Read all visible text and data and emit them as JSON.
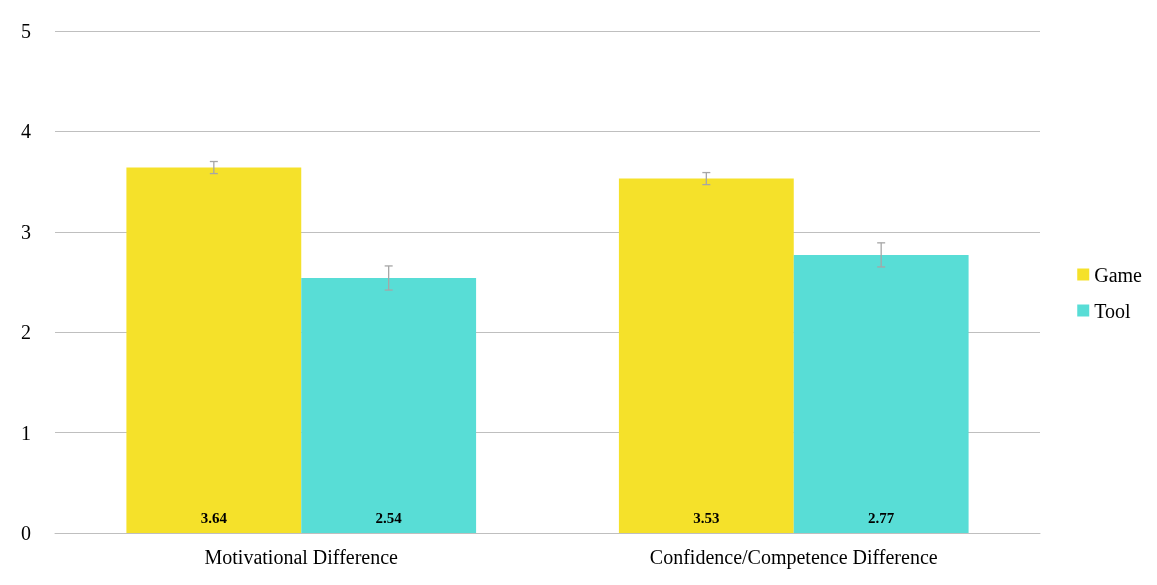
{
  "chart_data": {
    "type": "bar",
    "categories": [
      "Motivational Difference",
      "Confidence/Competence Difference"
    ],
    "series": [
      {
        "name": "Game",
        "color": "#f5e12a",
        "values": [
          3.64,
          3.53
        ],
        "errors": [
          0.06,
          0.06
        ]
      },
      {
        "name": "Tool",
        "color": "#58ddd6",
        "values": [
          2.54,
          2.77
        ],
        "errors": [
          0.12,
          0.12
        ]
      }
    ],
    "ylim": [
      0,
      5
    ],
    "yticks": [
      0,
      1,
      2,
      3,
      4,
      5
    ],
    "grid": "y",
    "legend": "right",
    "data_labels": true
  }
}
